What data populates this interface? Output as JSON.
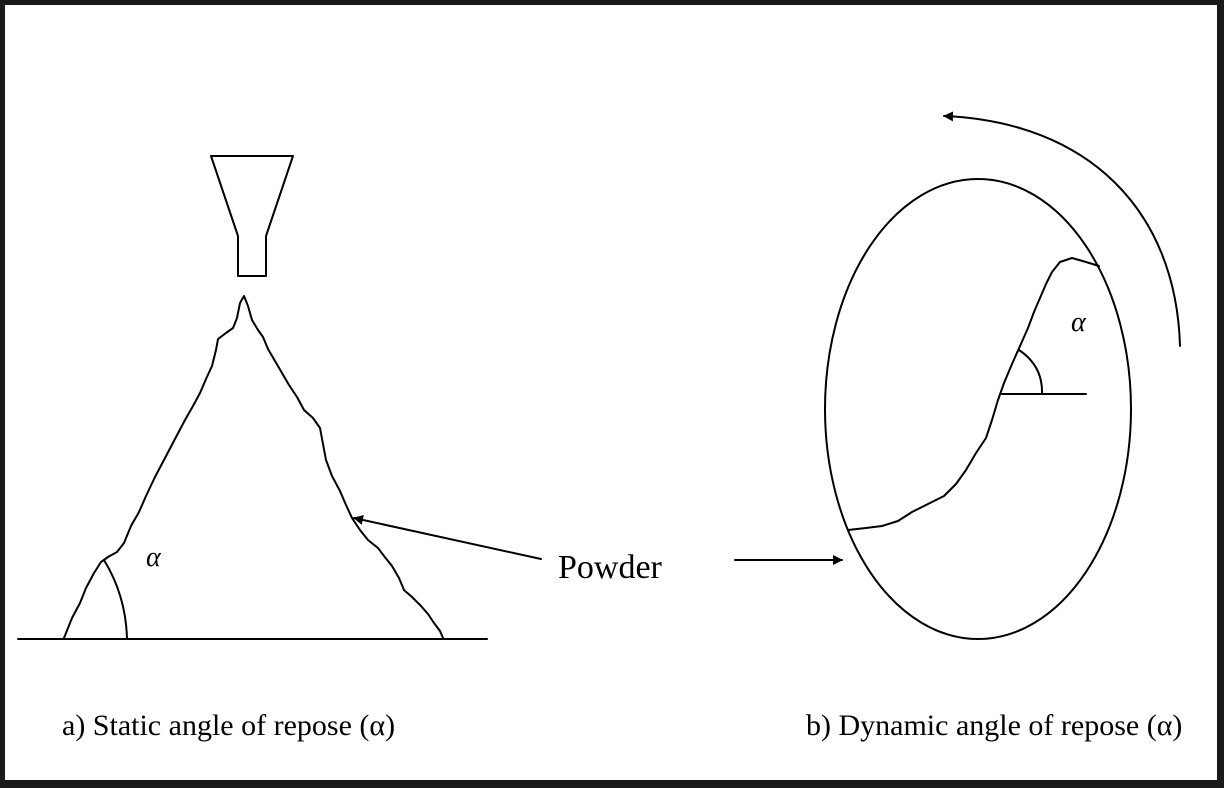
{
  "panel_a": {
    "alpha_symbol": "α",
    "caption": "a) Static angle of repose (α)"
  },
  "panel_b": {
    "alpha_symbol": "α",
    "caption": "b) Dynamic angle of repose (α)"
  },
  "powder_label": "Powder"
}
